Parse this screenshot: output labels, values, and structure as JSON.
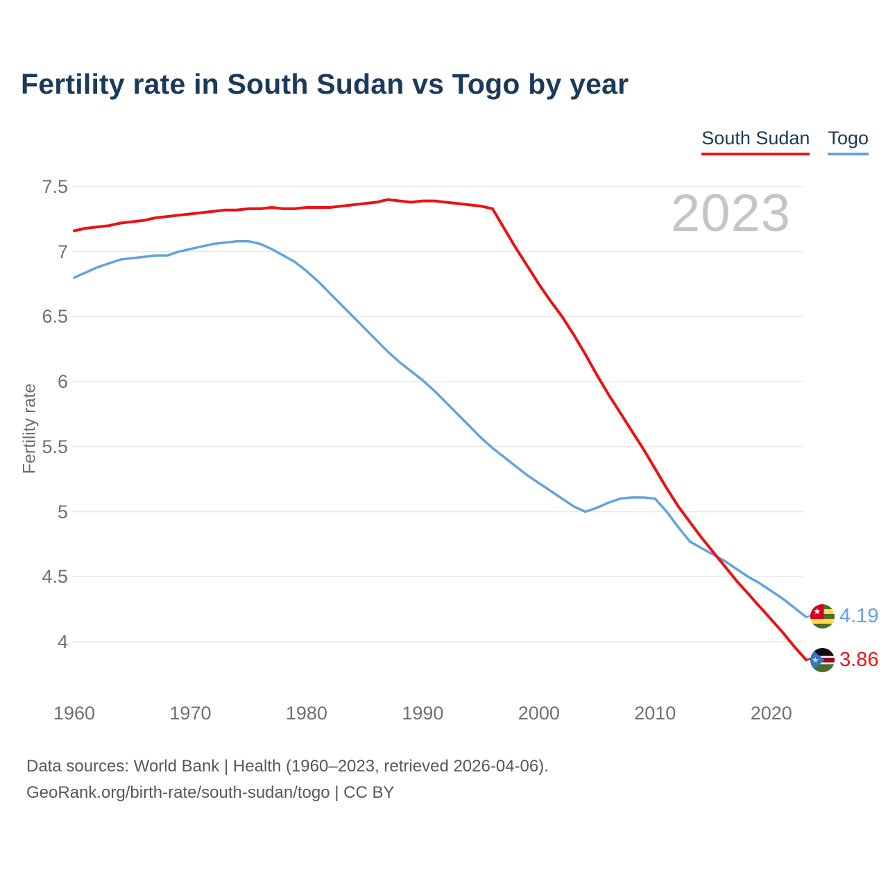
{
  "title": "Fertility rate in South Sudan vs Togo by year",
  "watermark": "2023",
  "legend": [
    {
      "label": "South Sudan",
      "color": "#ec1212"
    },
    {
      "label": "Togo",
      "color": "#62a3de"
    }
  ],
  "y_axis": {
    "label": "Fertility rate",
    "ticks": [
      7.5,
      7,
      6.5,
      6,
      5.5,
      5,
      4.5,
      4
    ]
  },
  "x_axis": {
    "ticks": [
      1960,
      1970,
      1980,
      1990,
      2000,
      2010,
      2020
    ]
  },
  "footer": {
    "line1": "Data sources: World Bank | Health (1960–2023, retrieved 2026-04-06).",
    "line2": "GeoRank.org/birth-rate/south-sudan/togo | CC BY"
  },
  "end_labels": {
    "togo": "4.19",
    "south_sudan": "3.86"
  },
  "icons": [
    "togo-flag-icon",
    "south-sudan-flag-icon"
  ],
  "chart_data": {
    "type": "line",
    "title": "Fertility rate in South Sudan vs Togo by year",
    "xlabel": "",
    "ylabel": "Fertility rate",
    "ylim": [
      4,
      7.5
    ],
    "xlim": [
      1960,
      2023
    ],
    "grid": "horizontal",
    "legend_position": "top-right",
    "years": [
      1960,
      1961,
      1962,
      1963,
      1964,
      1965,
      1966,
      1967,
      1968,
      1969,
      1970,
      1971,
      1972,
      1973,
      1974,
      1975,
      1976,
      1977,
      1978,
      1979,
      1980,
      1981,
      1982,
      1983,
      1984,
      1985,
      1986,
      1987,
      1988,
      1989,
      1990,
      1991,
      1992,
      1993,
      1994,
      1995,
      1996,
      1997,
      1998,
      1999,
      2000,
      2001,
      2002,
      2003,
      2004,
      2005,
      2006,
      2007,
      2008,
      2009,
      2010,
      2011,
      2012,
      2013,
      2014,
      2015,
      2016,
      2017,
      2018,
      2019,
      2020,
      2021,
      2022,
      2023
    ],
    "series": [
      {
        "name": "Togo",
        "color": "#62a3de",
        "end_label": "4.19",
        "icon": "togo-flag-icon",
        "values": [
          6.8,
          6.84,
          6.88,
          6.91,
          6.94,
          6.95,
          6.96,
          6.97,
          6.97,
          7.0,
          7.02,
          7.04,
          7.06,
          7.07,
          7.08,
          7.08,
          7.06,
          7.02,
          6.97,
          6.92,
          6.85,
          6.77,
          6.68,
          6.59,
          6.5,
          6.41,
          6.32,
          6.23,
          6.15,
          6.08,
          6.01,
          5.93,
          5.84,
          5.75,
          5.66,
          5.57,
          5.49,
          5.42,
          5.35,
          5.28,
          5.22,
          5.16,
          5.1,
          5.04,
          5.0,
          5.03,
          5.07,
          5.1,
          5.11,
          5.11,
          5.1,
          5.0,
          4.88,
          4.77,
          4.72,
          4.67,
          4.62,
          4.56,
          4.5,
          4.45,
          4.39,
          4.33,
          4.26,
          4.19
        ]
      },
      {
        "name": "South Sudan",
        "color": "#ec1212",
        "end_label": "3.86",
        "icon": "south-sudan-flag-icon",
        "values": [
          7.16,
          7.18,
          7.19,
          7.2,
          7.22,
          7.23,
          7.24,
          7.26,
          7.27,
          7.28,
          7.29,
          7.3,
          7.31,
          7.32,
          7.32,
          7.33,
          7.33,
          7.34,
          7.33,
          7.33,
          7.34,
          7.34,
          7.34,
          7.35,
          7.36,
          7.37,
          7.38,
          7.4,
          7.39,
          7.38,
          7.39,
          7.39,
          7.38,
          7.37,
          7.36,
          7.35,
          7.33,
          7.18,
          7.03,
          6.89,
          6.75,
          6.62,
          6.5,
          6.36,
          6.21,
          6.05,
          5.9,
          5.76,
          5.62,
          5.48,
          5.33,
          5.18,
          5.04,
          4.92,
          4.8,
          4.69,
          4.58,
          4.47,
          4.37,
          4.27,
          4.17,
          4.07,
          3.96,
          3.86
        ]
      }
    ]
  }
}
